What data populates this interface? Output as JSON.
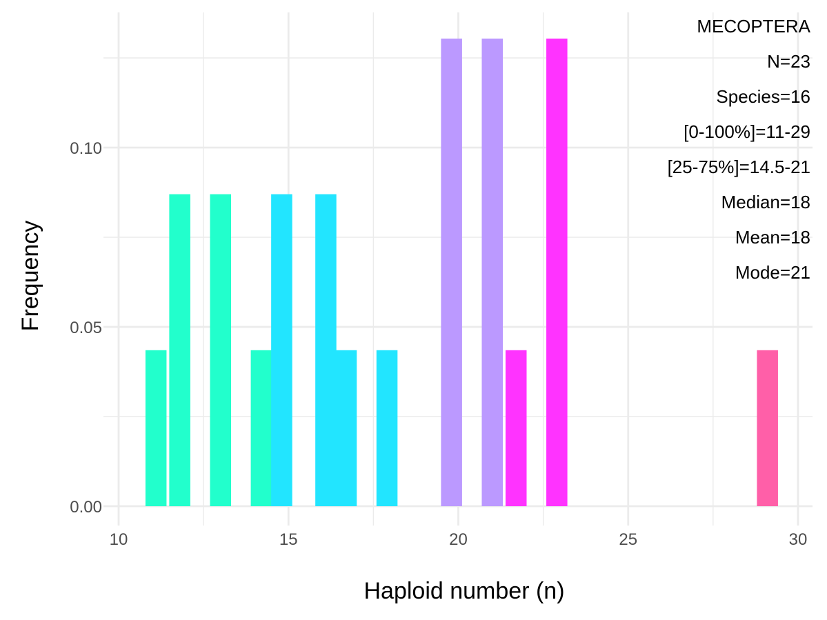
{
  "chart_data": {
    "type": "bar",
    "xlabel": "Haploid number (n)",
    "ylabel": "Frequency",
    "xlim": [
      10,
      30
    ],
    "ylim": [
      0,
      0.13
    ],
    "x_ticks": [
      "10",
      "15",
      "20",
      "25",
      "30"
    ],
    "x_tick_values": [
      10,
      15,
      20,
      25,
      30
    ],
    "y_ticks": [
      "0.00",
      "0.05",
      "0.10"
    ],
    "y_tick_values": [
      0.0,
      0.05,
      0.1
    ],
    "grid": true,
    "bin_width": 0.62,
    "bars": [
      {
        "x": 11.1,
        "frequency": 0.0435,
        "color": "#22FFCC"
      },
      {
        "x": 11.8,
        "frequency": 0.087,
        "color": "#22FFCC"
      },
      {
        "x": 13.0,
        "frequency": 0.087,
        "color": "#22FFCC"
      },
      {
        "x": 14.2,
        "frequency": 0.0435,
        "color": "#22FFCC"
      },
      {
        "x": 14.8,
        "frequency": 0.087,
        "color": "#22E5FF"
      },
      {
        "x": 16.1,
        "frequency": 0.087,
        "color": "#22E5FF"
      },
      {
        "x": 16.7,
        "frequency": 0.0435,
        "color": "#22E5FF"
      },
      {
        "x": 17.9,
        "frequency": 0.0435,
        "color": "#22E5FF"
      },
      {
        "x": 19.8,
        "frequency": 0.1304,
        "color": "#BB99FF"
      },
      {
        "x": 21.0,
        "frequency": 0.1304,
        "color": "#BB99FF"
      },
      {
        "x": 21.7,
        "frequency": 0.0435,
        "color": "#FF33FF"
      },
      {
        "x": 22.9,
        "frequency": 0.1304,
        "color": "#FF33FF"
      },
      {
        "x": 29.1,
        "frequency": 0.0435,
        "color": "#FF5FA8"
      }
    ]
  },
  "stats": {
    "group": "MECOPTERA",
    "n": "N=23",
    "species": "Species=16",
    "range": "[0-100%]=11-29",
    "iqr": "[25-75%]=14.5-21",
    "median": "Median=18",
    "mean": "Mean=18",
    "mode": "Mode=21"
  },
  "colors": {
    "grid": "#EBEBEB",
    "tick_label": "#4D4D4D",
    "text": "#000000"
  }
}
